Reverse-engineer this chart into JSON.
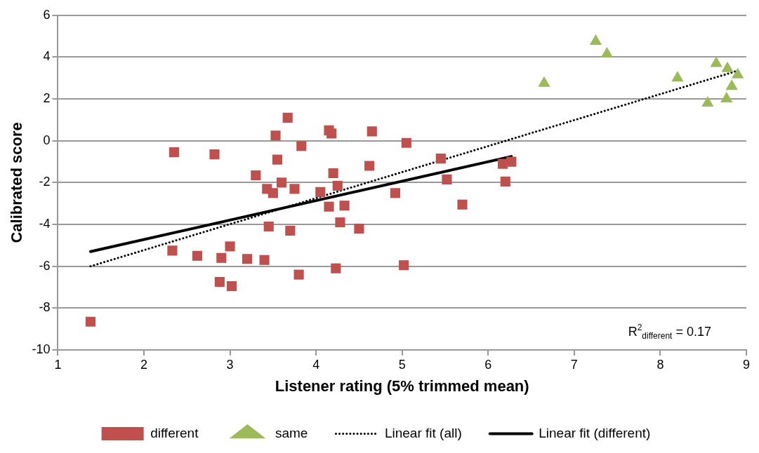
{
  "chart_data": {
    "type": "scatter",
    "xlabel": "Listener rating (5% trimmed mean)",
    "ylabel": "Calibrated score",
    "xlim": [
      1,
      9
    ],
    "xticks": [
      1,
      2,
      3,
      4,
      5,
      6,
      7,
      8,
      9
    ],
    "ylim": [
      -10,
      6
    ],
    "yticks": [
      -10,
      -8,
      -6,
      -4,
      -2,
      0,
      2,
      4,
      6
    ],
    "grid": "y",
    "legend": "bottom",
    "annotations": [
      "R$^{2}$$_{different}$ = 0.17"
    ],
    "series": [
      {
        "name": "different",
        "type": "scatter",
        "marker": "square",
        "color": "#c0504d",
        "x": [
          1.38,
          2.33,
          2.35,
          2.62,
          2.82,
          2.88,
          2.9,
          3.0,
          3.02,
          3.2,
          3.3,
          3.4,
          3.43,
          3.45,
          3.5,
          3.53,
          3.55,
          3.6,
          3.67,
          3.7,
          3.75,
          3.8,
          3.83,
          4.05,
          4.15,
          4.15,
          4.18,
          4.2,
          4.23,
          4.25,
          4.28,
          4.33,
          4.5,
          4.62,
          4.65,
          4.92,
          5.02,
          5.05,
          5.45,
          5.52,
          5.7,
          6.17,
          6.27,
          6.2
        ],
        "values": [
          -8.65,
          -5.25,
          -0.55,
          -5.5,
          -0.65,
          -6.75,
          -5.6,
          -5.05,
          -6.95,
          -5.65,
          -1.65,
          -5.7,
          -2.3,
          -4.1,
          -2.5,
          0.25,
          -0.9,
          -2.0,
          1.1,
          -4.3,
          -2.3,
          -6.4,
          -0.25,
          -2.45,
          0.5,
          -3.15,
          0.35,
          -1.55,
          -6.1,
          -2.15,
          -3.9,
          -3.1,
          -4.2,
          -1.2,
          0.45,
          -2.5,
          -5.95,
          -0.1,
          -0.85,
          -1.85,
          -3.05,
          -1.1,
          -1.0,
          -1.95
        ]
      },
      {
        "name": "same",
        "type": "scatter",
        "marker": "triangle",
        "color": "#9bbb59",
        "x": [
          6.65,
          7.25,
          7.38,
          8.2,
          8.55,
          8.65,
          8.78,
          8.77,
          8.83,
          8.9
        ],
        "values": [
          2.75,
          4.75,
          4.15,
          3.0,
          1.8,
          3.7,
          3.45,
          2.0,
          2.6,
          3.15
        ]
      },
      {
        "name": "Linear fit (all)",
        "type": "line",
        "line_style": "dotted",
        "marker": "none",
        "color": "#000000",
        "x": [
          1.38,
          8.9
        ],
        "values": [
          -6.0,
          3.35
        ]
      },
      {
        "name": "Linear fit (different)",
        "type": "line",
        "line_style": "solid",
        "marker": "none",
        "color": "#000000",
        "x": [
          1.38,
          6.27
        ],
        "values": [
          -5.3,
          -0.75
        ]
      }
    ]
  }
}
